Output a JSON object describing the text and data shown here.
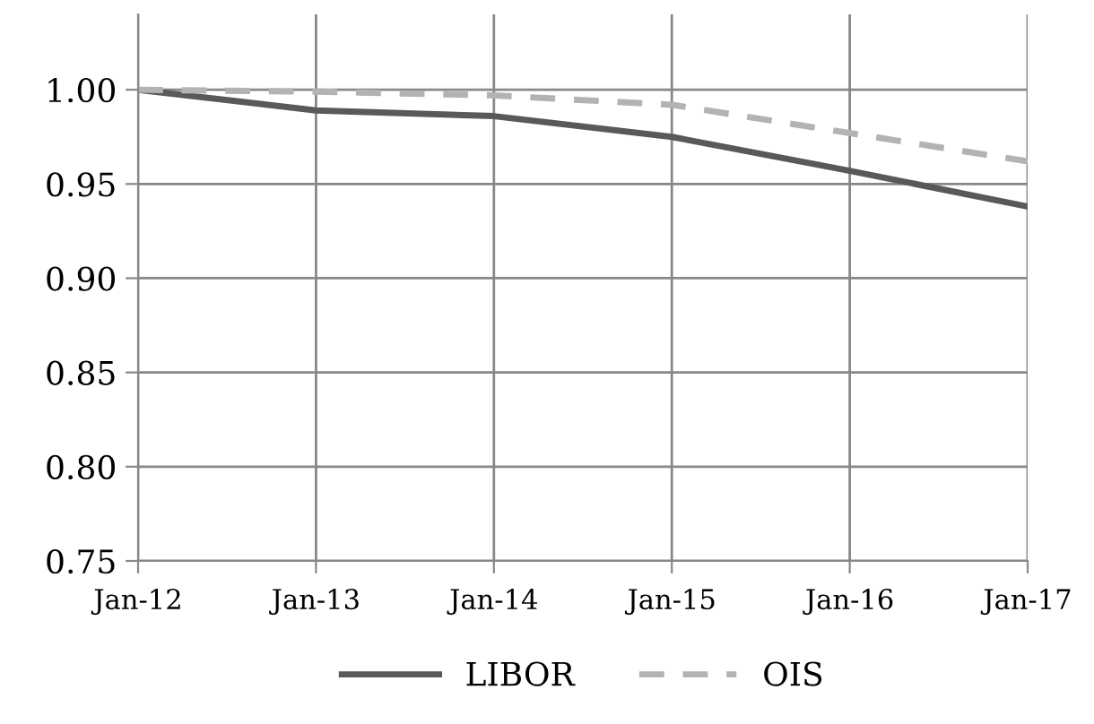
{
  "chart_data": {
    "type": "line",
    "categories": [
      "Jan-12",
      "Jan-13",
      "Jan-14",
      "Jan-15",
      "Jan-16",
      "Jan-17"
    ],
    "series": [
      {
        "name": "LIBOR",
        "color": "#595959",
        "line_style": "solid",
        "values": [
          1.0,
          0.989,
          0.986,
          0.975,
          0.957,
          0.938
        ]
      },
      {
        "name": "OIS",
        "color": "#b3b3b3",
        "line_style": "dashed",
        "values": [
          1.0,
          0.999,
          0.997,
          0.992,
          0.977,
          0.962
        ]
      }
    ],
    "ylim": [
      0.75,
      1.04
    ],
    "yticks": [
      0.75,
      {
        "value": 0.8,
        "label": "0.80"
      },
      0.85,
      {
        "value": 0.9,
        "label": "0.90"
      },
      0.95,
      {
        "value": 1.0,
        "label": "1.00"
      }
    ],
    "grid": true,
    "legend": "bottom",
    "marker": "none"
  }
}
